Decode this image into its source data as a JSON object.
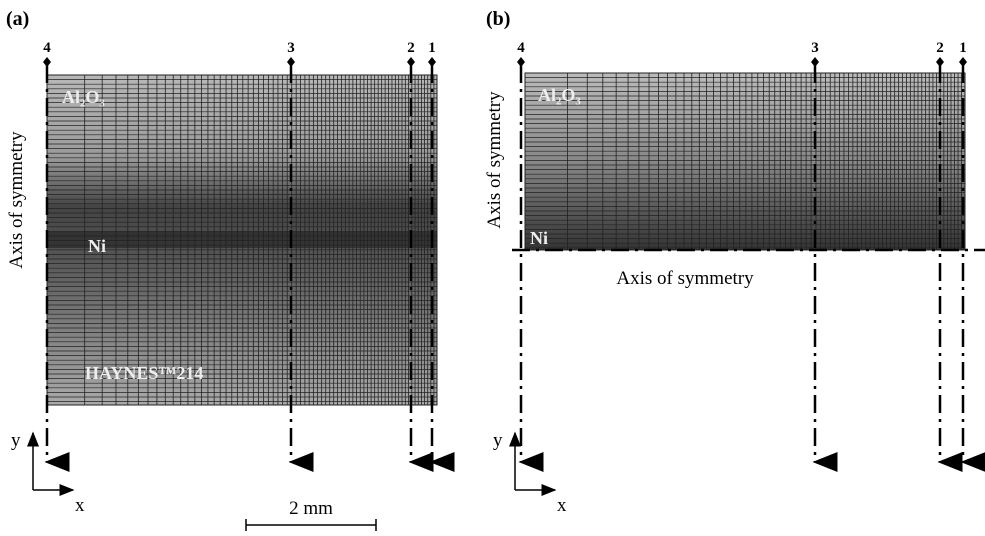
{
  "panels": [
    {
      "label": "(a)",
      "lines": [
        "4",
        "3",
        "2",
        "1"
      ],
      "axis_label": "Axis of symmetry",
      "materials": [
        "Al₂O₃",
        "Ni",
        "HAYNES™214"
      ],
      "y_axis": "y",
      "x_axis": "x"
    },
    {
      "label": "(b)",
      "lines": [
        "4",
        "3",
        "2",
        "1"
      ],
      "axis_label": "Axis of symmetry",
      "horizontal_axis_label": "Axis of symmetry",
      "materials": [
        "Al₂O₃",
        "Ni"
      ],
      "y_axis": "y",
      "x_axis": "x"
    }
  ],
  "scale_bar": "2 mm"
}
